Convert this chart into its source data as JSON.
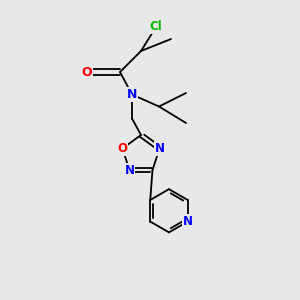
{
  "bg_color": "#e8e8e8",
  "bond_color": "#000000",
  "cl_color": "#00bb00",
  "o_color": "#ff0000",
  "n_color": "#0000ff",
  "line_width": 1.3,
  "font_size_atom": 8.5,
  "fig_width": 3.0,
  "fig_height": 3.0,
  "dpi": 100,
  "xlim": [
    0,
    10
  ],
  "ylim": [
    0,
    10
  ]
}
